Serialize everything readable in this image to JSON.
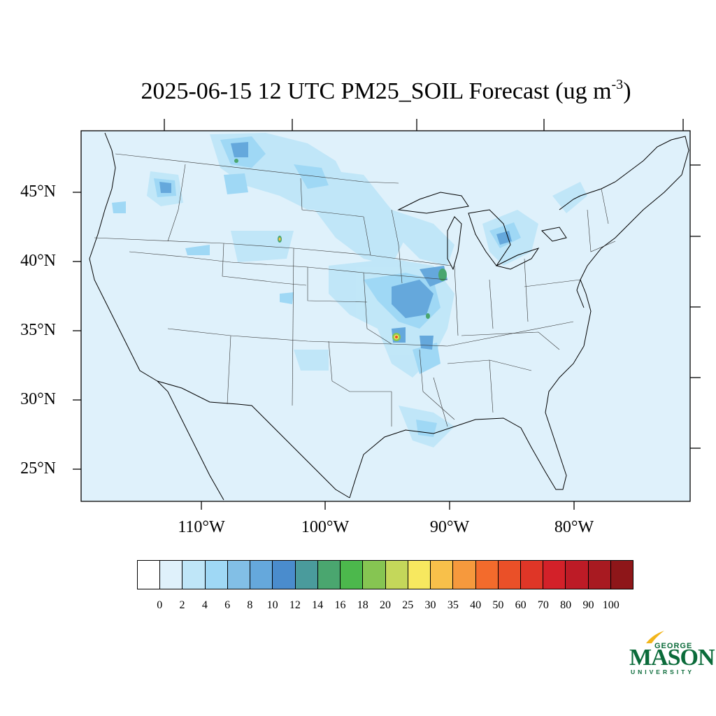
{
  "title": {
    "text": "2025-06-15 12 UTC PM25_SOIL Forecast (ug m",
    "superscript": "-3",
    "close": ")"
  },
  "map": {
    "region": "Contiguous United States",
    "latitude_labels": [
      "45°N",
      "40°N",
      "35°N",
      "30°N",
      "25°N"
    ],
    "longitude_labels": [
      "110°W",
      "100°W",
      "90°W",
      "80°W"
    ],
    "background_color": "#dff1fb"
  },
  "colorbar": {
    "labels": [
      "0",
      "2",
      "4",
      "6",
      "8",
      "10",
      "12",
      "14",
      "16",
      "18",
      "20",
      "25",
      "30",
      "35",
      "40",
      "50",
      "60",
      "70",
      "80",
      "90",
      "100"
    ],
    "colors": [
      "#ffffff",
      "#dff1fb",
      "#bfe6f8",
      "#9fd8f5",
      "#82bfe6",
      "#65a8dc",
      "#4a8ccd",
      "#4a9b9c",
      "#4aa66f",
      "#4cb84c",
      "#86c552",
      "#c4d75a",
      "#f7e85f",
      "#f8c04a",
      "#f6993d",
      "#f36b2c",
      "#ea5028",
      "#df3627",
      "#d32129",
      "#bd1b26",
      "#a81a21",
      "#8e1619"
    ]
  },
  "logo": {
    "line1": "GEORGE",
    "line2": "MASON",
    "line3": "UNIVERSITY"
  }
}
